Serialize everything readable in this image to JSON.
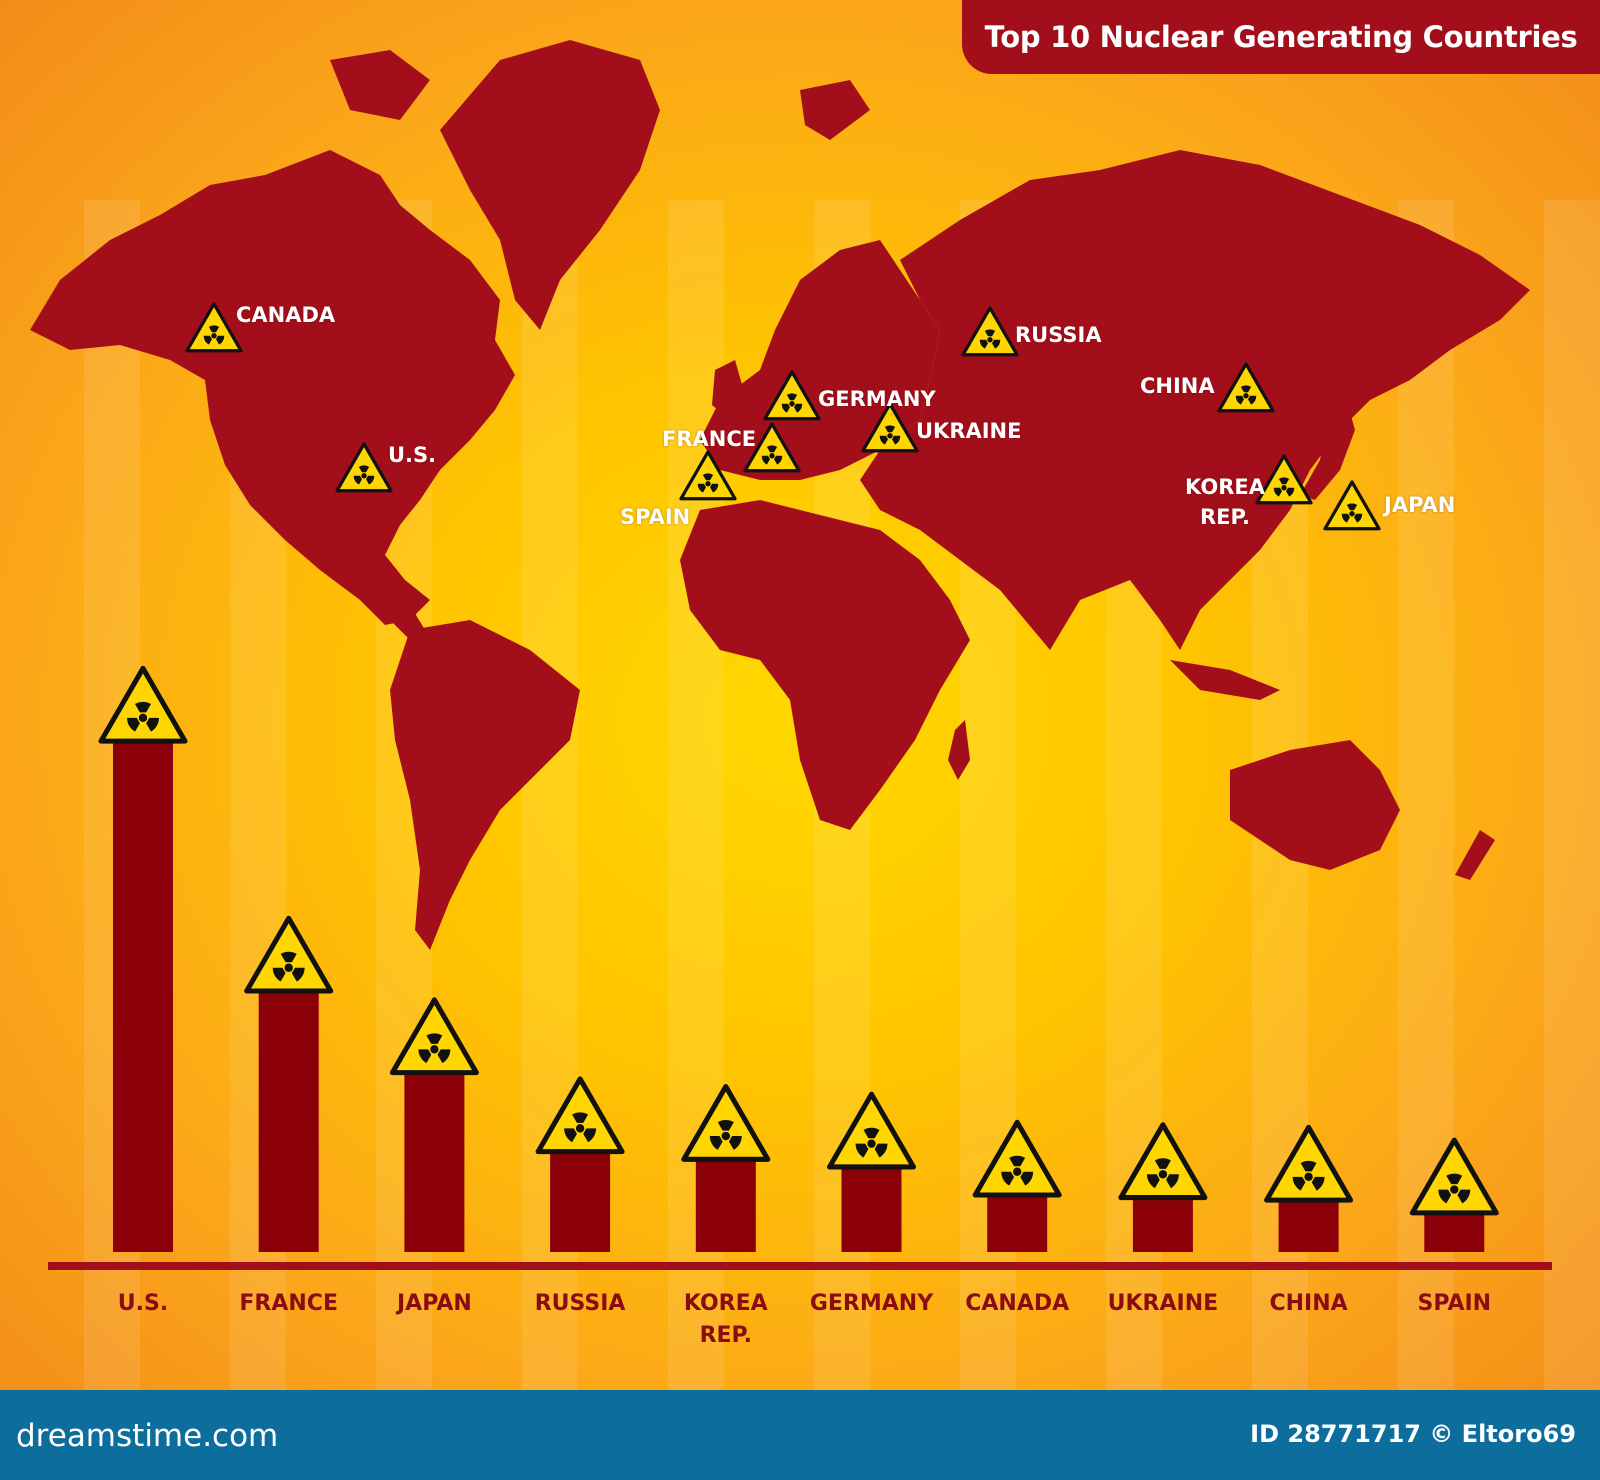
{
  "title": "Top 10 Nuclear Generating Countries",
  "colors": {
    "land": "#a20f1a",
    "bar": "#8b0008",
    "axis": "#a20f1a",
    "sign_yellow": "#ffd600",
    "footer": "#0d6d9c"
  },
  "icons": {
    "map_marker": "radiation-warning-icon",
    "bar_cap": "radiation-warning-icon",
    "footer_logo": "dreamstime-logo"
  },
  "map_markers": [
    {
      "label": "CANADA"
    },
    {
      "label": "U.S."
    },
    {
      "label": "RUSSIA"
    },
    {
      "label": "CHINA"
    },
    {
      "label": "GERMANY"
    },
    {
      "label": "UKRAINE"
    },
    {
      "label": "FRANCE"
    },
    {
      "label": "SPAIN"
    },
    {
      "label": "KOREA REP."
    },
    {
      "label": "JAPAN"
    }
  ],
  "chart_data": {
    "type": "bar",
    "title": "Top 10 Nuclear Generating Countries",
    "categories": [
      "U.S.",
      "FRANCE",
      "JAPAN",
      "RUSSIA",
      "KOREA REP.",
      "GERMANY",
      "CANADA",
      "UKRAINE",
      "CHINA",
      "SPAIN"
    ],
    "values": [
      100,
      51,
      35,
      19.5,
      18,
      16.5,
      11,
      10.5,
      10,
      7.5
    ],
    "ylim": [
      0,
      100
    ],
    "grid": false,
    "legend": "none",
    "value_axis_shown": false
  },
  "footer": {
    "left": "dreamstime.com",
    "right": "ID 28771717 © Eltoro69"
  }
}
